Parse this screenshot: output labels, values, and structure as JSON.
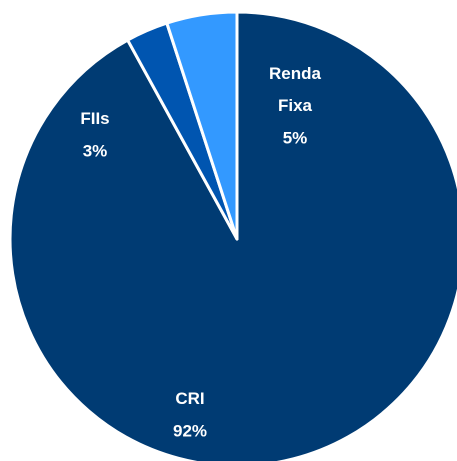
{
  "chart_data": {
    "type": "pie",
    "categories": [
      "CRI",
      "FIIs",
      "Renda Fixa"
    ],
    "values": [
      92,
      3,
      5
    ],
    "value_labels": [
      "92%",
      "3%",
      "5%"
    ],
    "colors": [
      "#003b73",
      "#0055b0",
      "#3399ff"
    ]
  }
}
